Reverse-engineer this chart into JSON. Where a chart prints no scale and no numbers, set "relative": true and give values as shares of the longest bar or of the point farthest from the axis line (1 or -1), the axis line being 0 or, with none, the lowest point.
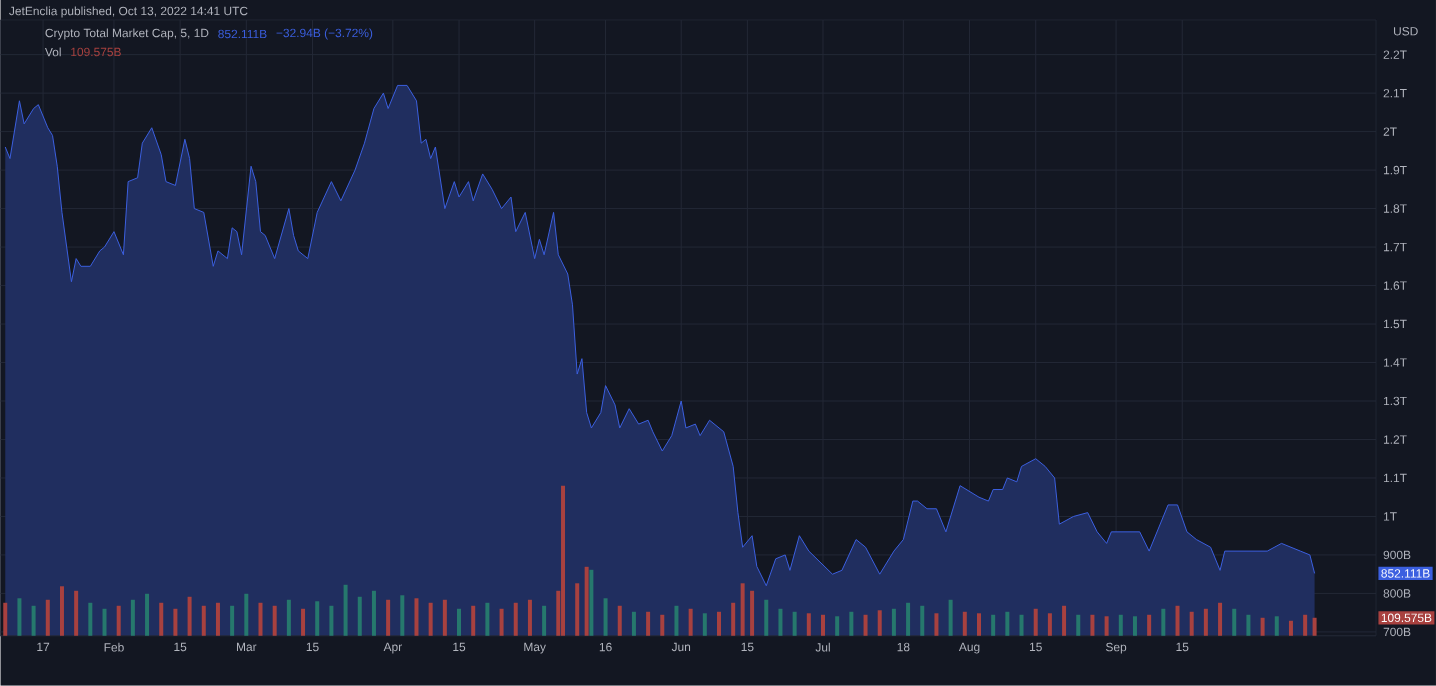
{
  "chart_data": [
    {
      "type": "area",
      "title": "Crypto Total Market Cap, 5, 1D",
      "ylabel": "USD",
      "color": "#3b5fe0",
      "grid": true,
      "annotations": [
        "JetEnclia published, Oct 13, 2022 14:41 UTC",
        "852.111B",
        "−32.94B (−3.72%)"
      ],
      "xlim": [
        "2022-01-08",
        "2022-10-26"
      ],
      "ylim": [
        690000000000.0,
        2290000000000.0
      ],
      "xticks": [
        {
          "value": "2022-01-17",
          "label": "17"
        },
        {
          "value": "2022-02-01",
          "label": "Feb"
        },
        {
          "value": "2022-02-15",
          "label": "15"
        },
        {
          "value": "2022-03-01",
          "label": "Mar"
        },
        {
          "value": "2022-03-15",
          "label": "15"
        },
        {
          "value": "2022-04-01",
          "label": "Apr"
        },
        {
          "value": "2022-04-15",
          "label": "15"
        },
        {
          "value": "2022-05-01",
          "label": "May"
        },
        {
          "value": "2022-05-16",
          "label": "16"
        },
        {
          "value": "2022-06-01",
          "label": "Jun"
        },
        {
          "value": "2022-06-15",
          "label": "15"
        },
        {
          "value": "2022-07-01",
          "label": "Jul"
        },
        {
          "value": "2022-07-18",
          "label": "18"
        },
        {
          "value": "2022-08-01",
          "label": "Aug"
        },
        {
          "value": "2022-08-15",
          "label": "15"
        },
        {
          "value": "2022-09-01",
          "label": "Sep"
        },
        {
          "value": "2022-09-15",
          "label": "15"
        }
      ],
      "yticks": [
        {
          "value": 700000000000.0,
          "label": "700B"
        },
        {
          "value": 800000000000.0,
          "label": "800B"
        },
        {
          "value": 900000000000.0,
          "label": "900B"
        },
        {
          "value": 1000000000000.0,
          "label": "1T"
        },
        {
          "value": 1100000000000.0,
          "label": "1.1T"
        },
        {
          "value": 1200000000000.0,
          "label": "1.2T"
        },
        {
          "value": 1300000000000.0,
          "label": "1.3T"
        },
        {
          "value": 1400000000000.0,
          "label": "1.4T"
        },
        {
          "value": 1500000000000.0,
          "label": "1.5T"
        },
        {
          "value": 1600000000000.0,
          "label": "1.6T"
        },
        {
          "value": 1700000000000.0,
          "label": "1.7T"
        },
        {
          "value": 1800000000000.0,
          "label": "1.8T"
        },
        {
          "value": 1900000000000.0,
          "label": "1.9T"
        },
        {
          "value": 2000000000000.0,
          "label": "2T"
        },
        {
          "value": 2100000000000.0,
          "label": "2.1T"
        },
        {
          "value": 2200000000000.0,
          "label": "2.2T"
        }
      ],
      "x": [
        "2022-01-09",
        "2022-01-10",
        "2022-01-12",
        "2022-01-13",
        "2022-01-15",
        "2022-01-16",
        "2022-01-18",
        "2022-01-19",
        "2022-01-20",
        "2022-01-21",
        "2022-01-23",
        "2022-01-24",
        "2022-01-25",
        "2022-01-27",
        "2022-01-29",
        "2022-01-30",
        "2022-02-01",
        "2022-02-03",
        "2022-02-04",
        "2022-02-06",
        "2022-02-07",
        "2022-02-09",
        "2022-02-11",
        "2022-02-12",
        "2022-02-14",
        "2022-02-16",
        "2022-02-17",
        "2022-02-18",
        "2022-02-20",
        "2022-02-22",
        "2022-02-23",
        "2022-02-25",
        "2022-02-26",
        "2022-02-27",
        "2022-02-28",
        "2022-03-02",
        "2022-03-03",
        "2022-03-04",
        "2022-03-05",
        "2022-03-07",
        "2022-03-10",
        "2022-03-11",
        "2022-03-12",
        "2022-03-14",
        "2022-03-16",
        "2022-03-19",
        "2022-03-21",
        "2022-03-24",
        "2022-03-26",
        "2022-03-28",
        "2022-03-30",
        "2022-03-31",
        "2022-04-02",
        "2022-04-04",
        "2022-04-06",
        "2022-04-07",
        "2022-04-08",
        "2022-04-09",
        "2022-04-10",
        "2022-04-12",
        "2022-04-14",
        "2022-04-15",
        "2022-04-17",
        "2022-04-18",
        "2022-04-20",
        "2022-04-22",
        "2022-04-24",
        "2022-04-26",
        "2022-04-27",
        "2022-04-29",
        "2022-05-01",
        "2022-05-02",
        "2022-05-03",
        "2022-05-05",
        "2022-05-06",
        "2022-05-08",
        "2022-05-09",
        "2022-05-10",
        "2022-05-11",
        "2022-05-12",
        "2022-05-13",
        "2022-05-15",
        "2022-05-16",
        "2022-05-18",
        "2022-05-19",
        "2022-05-21",
        "2022-05-23",
        "2022-05-25",
        "2022-05-26",
        "2022-05-28",
        "2022-05-30",
        "2022-06-01",
        "2022-06-02",
        "2022-06-04",
        "2022-06-05",
        "2022-06-07",
        "2022-06-10",
        "2022-06-12",
        "2022-06-13",
        "2022-06-14",
        "2022-06-16",
        "2022-06-17",
        "2022-06-19",
        "2022-06-21",
        "2022-06-23",
        "2022-06-24",
        "2022-06-26",
        "2022-06-28",
        "2022-07-03",
        "2022-07-05",
        "2022-07-08",
        "2022-07-10",
        "2022-07-13",
        "2022-07-16",
        "2022-07-18",
        "2022-07-20",
        "2022-07-21",
        "2022-07-23",
        "2022-07-25",
        "2022-07-27",
        "2022-07-30",
        "2022-08-03",
        "2022-08-05",
        "2022-08-06",
        "2022-08-08",
        "2022-08-09",
        "2022-08-11",
        "2022-08-12",
        "2022-08-15",
        "2022-08-17",
        "2022-08-19",
        "2022-08-20",
        "2022-08-23",
        "2022-08-26",
        "2022-08-28",
        "2022-08-30",
        "2022-08-31",
        "2022-09-02",
        "2022-09-06",
        "2022-09-08",
        "2022-09-10",
        "2022-09-12",
        "2022-09-14",
        "2022-09-16",
        "2022-09-18",
        "2022-09-21",
        "2022-09-23",
        "2022-09-24",
        "2022-09-28",
        "2022-10-03",
        "2022-10-06",
        "2022-10-10",
        "2022-10-12",
        "2022-10-13"
      ],
      "values": [
        1960000000000.0,
        1930000000000.0,
        2080000000000.0,
        2020000000000.0,
        2060000000000.0,
        2070000000000.0,
        2010000000000.0,
        1990000000000.0,
        1910000000000.0,
        1790000000000.0,
        1610000000000.0,
        1670000000000.0,
        1650000000000.0,
        1650000000000.0,
        1690000000000.0,
        1700000000000.0,
        1740000000000.0,
        1680000000000.0,
        1870000000000.0,
        1880000000000.0,
        1970000000000.0,
        2010000000000.0,
        1940000000000.0,
        1870000000000.0,
        1860000000000.0,
        1980000000000.0,
        1930000000000.0,
        1800000000000.0,
        1790000000000.0,
        1650000000000.0,
        1690000000000.0,
        1670000000000.0,
        1750000000000.0,
        1740000000000.0,
        1680000000000.0,
        1910000000000.0,
        1870000000000.0,
        1740000000000.0,
        1730000000000.0,
        1670000000000.0,
        1800000000000.0,
        1730000000000.0,
        1690000000000.0,
        1670000000000.0,
        1790000000000.0,
        1870000000000.0,
        1820000000000.0,
        1900000000000.0,
        1970000000000.0,
        2060000000000.0,
        2100000000000.0,
        2060000000000.0,
        2120000000000.0,
        2120000000000.0,
        2080000000000.0,
        1970000000000.0,
        1980000000000.0,
        1930000000000.0,
        1960000000000.0,
        1800000000000.0,
        1870000000000.0,
        1830000000000.0,
        1870000000000.0,
        1820000000000.0,
        1890000000000.0,
        1850000000000.0,
        1800000000000.0,
        1830000000000.0,
        1740000000000.0,
        1790000000000.0,
        1670000000000.0,
        1720000000000.0,
        1680000000000.0,
        1790000000000.0,
        1680000000000.0,
        1630000000000.0,
        1550000000000.0,
        1370000000000.0,
        1410000000000.0,
        1270000000000.0,
        1230000000000.0,
        1270000000000.0,
        1340000000000.0,
        1290000000000.0,
        1230000000000.0,
        1280000000000.0,
        1240000000000.0,
        1250000000000.0,
        1220000000000.0,
        1170000000000.0,
        1210000000000.0,
        1300000000000.0,
        1230000000000.0,
        1240000000000.0,
        1210000000000.0,
        1250000000000.0,
        1220000000000.0,
        1130000000000.0,
        1010000000000.0,
        920000000000.0,
        950000000000.0,
        870000000000.0,
        820000000000.0,
        890000000000.0,
        900000000000.0,
        860000000000.0,
        950000000000.0,
        910000000000.0,
        850000000000.0,
        860000000000.0,
        940000000000.0,
        920000000000.0,
        850000000000.0,
        910000000000.0,
        940000000000.0,
        1040000000000.0,
        1040000000000.0,
        1020000000000.0,
        1020000000000.0,
        960000000000.0,
        1080000000000.0,
        1050000000000.0,
        1040000000000.0,
        1070000000000.0,
        1070000000000.0,
        1100000000000.0,
        1090000000000.0,
        1130000000000.0,
        1150000000000.0,
        1130000000000.0,
        1100000000000.0,
        980000000000.0,
        1000000000000.0,
        1010000000000.0,
        960000000000.0,
        930000000000.0,
        960000000000.0,
        960000000000.0,
        960000000000.0,
        910000000000.0,
        970000000000.0,
        1030000000000.0,
        1030000000000.0,
        960000000000.0,
        940000000000.0,
        920000000000.0,
        860000000000.0,
        910000000000.0,
        910000000000.0,
        910000000000.0,
        930000000000.0,
        910000000000.0,
        900000000000.0,
        852000000000.0
      ]
    },
    {
      "type": "bar",
      "title": "Vol",
      "relative": true,
      "xlim": [
        "2022-01-08",
        "2022-10-26"
      ],
      "annotations": [
        "109.575B"
      ],
      "x": [
        "2022-01-09",
        "2022-01-12",
        "2022-01-15",
        "2022-01-18",
        "2022-01-21",
        "2022-01-24",
        "2022-01-27",
        "2022-01-30",
        "2022-02-02",
        "2022-02-05",
        "2022-02-08",
        "2022-02-11",
        "2022-02-14",
        "2022-02-17",
        "2022-02-20",
        "2022-02-23",
        "2022-02-26",
        "2022-03-01",
        "2022-03-04",
        "2022-03-07",
        "2022-03-10",
        "2022-03-13",
        "2022-03-16",
        "2022-03-19",
        "2022-03-22",
        "2022-03-25",
        "2022-03-28",
        "2022-03-31",
        "2022-04-03",
        "2022-04-06",
        "2022-04-09",
        "2022-04-12",
        "2022-04-15",
        "2022-04-18",
        "2022-04-21",
        "2022-04-24",
        "2022-04-27",
        "2022-04-30",
        "2022-05-03",
        "2022-05-06",
        "2022-05-07",
        "2022-05-10",
        "2022-05-12",
        "2022-05-13",
        "2022-05-16",
        "2022-05-19",
        "2022-05-22",
        "2022-05-25",
        "2022-05-28",
        "2022-05-31",
        "2022-06-03",
        "2022-06-06",
        "2022-06-09",
        "2022-06-12",
        "2022-06-14",
        "2022-06-16",
        "2022-06-19",
        "2022-06-22",
        "2022-06-25",
        "2022-06-28",
        "2022-07-01",
        "2022-07-04",
        "2022-07-07",
        "2022-07-10",
        "2022-07-13",
        "2022-07-16",
        "2022-07-19",
        "2022-07-22",
        "2022-07-25",
        "2022-07-28",
        "2022-07-31",
        "2022-08-03",
        "2022-08-06",
        "2022-08-09",
        "2022-08-12",
        "2022-08-15",
        "2022-08-18",
        "2022-08-21",
        "2022-08-24",
        "2022-08-27",
        "2022-08-30",
        "2022-09-02",
        "2022-09-05",
        "2022-09-08",
        "2022-09-11",
        "2022-09-14",
        "2022-09-17",
        "2022-09-20",
        "2022-09-23",
        "2022-09-26",
        "2022-09-29",
        "2022-10-02",
        "2022-10-05",
        "2022-10-08",
        "2022-10-11",
        "2022-10-13"
      ],
      "values": [
        0.22,
        0.25,
        0.2,
        0.24,
        0.33,
        0.3,
        0.22,
        0.18,
        0.2,
        0.24,
        0.28,
        0.22,
        0.18,
        0.26,
        0.2,
        0.22,
        0.2,
        0.28,
        0.22,
        0.2,
        0.24,
        0.18,
        0.23,
        0.2,
        0.34,
        0.26,
        0.3,
        0.24,
        0.27,
        0.25,
        0.22,
        0.24,
        0.18,
        0.2,
        0.22,
        0.18,
        0.22,
        0.24,
        0.2,
        0.3,
        1,
        0.35,
        0.46,
        0.44,
        0.25,
        0.2,
        0.16,
        0.16,
        0.14,
        0.2,
        0.18,
        0.15,
        0.16,
        0.22,
        0.35,
        0.3,
        0.24,
        0.18,
        0.16,
        0.15,
        0.14,
        0.13,
        0.16,
        0.14,
        0.17,
        0.18,
        0.22,
        0.2,
        0.15,
        0.24,
        0.16,
        0.15,
        0.14,
        0.16,
        0.14,
        0.18,
        0.15,
        0.2,
        0.14,
        0.14,
        0.13,
        0.14,
        0.13,
        0.14,
        0.18,
        0.2,
        0.16,
        0.18,
        0.22,
        0.18,
        0.14,
        0.12,
        0.13,
        0.1,
        0.14,
        0.12
      ],
      "colors": [
        "#a8413f",
        "#26786d",
        "#26786d",
        "#a8413f",
        "#a8413f",
        "#a8413f",
        "#26786d",
        "#26786d",
        "#a8413f",
        "#26786d",
        "#26786d",
        "#a8413f",
        "#a8413f",
        "#a8413f",
        "#a8413f",
        "#a8413f",
        "#26786d",
        "#26786d",
        "#a8413f",
        "#a8413f",
        "#26786d",
        "#a8413f",
        "#26786d",
        "#26786d",
        "#26786d",
        "#26786d",
        "#26786d",
        "#a8413f",
        "#26786d",
        "#a8413f",
        "#a8413f",
        "#a8413f",
        "#26786d",
        "#a8413f",
        "#26786d",
        "#a8413f",
        "#a8413f",
        "#a8413f",
        "#26786d",
        "#a8413f",
        "#a8413f",
        "#a8413f",
        "#a8413f",
        "#26786d",
        "#26786d",
        "#a8413f",
        "#26786d",
        "#a8413f",
        "#a8413f",
        "#26786d",
        "#a8413f",
        "#26786d",
        "#a8413f",
        "#a8413f",
        "#a8413f",
        "#a8413f",
        "#26786d",
        "#26786d",
        "#26786d",
        "#a8413f",
        "#a8413f",
        "#26786d",
        "#26786d",
        "#a8413f",
        "#a8413f",
        "#26786d",
        "#26786d",
        "#26786d",
        "#a8413f",
        "#26786d",
        "#a8413f",
        "#a8413f",
        "#26786d",
        "#26786d",
        "#26786d",
        "#a8413f",
        "#a8413f",
        "#a8413f",
        "#26786d",
        "#a8413f",
        "#a8413f",
        "#26786d",
        "#26786d",
        "#a8413f",
        "#26786d",
        "#a8413f",
        "#a8413f",
        "#a8413f",
        "#a8413f",
        "#26786d",
        "#26786d",
        "#a8413f",
        "#26786d",
        "#a8413f",
        "#a8413f",
        "#a8413f"
      ]
    }
  ]
}
